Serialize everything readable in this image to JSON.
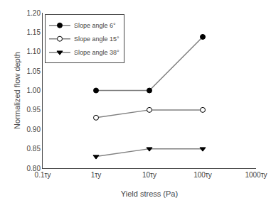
{
  "chart_data": {
    "type": "line",
    "x": [
      1,
      10,
      100
    ],
    "series": [
      {
        "name": "Slope angle 6°",
        "color": "#808080",
        "marker": "circle",
        "line_style": "solid",
        "values": [
          1.0,
          1.0,
          1.138
        ]
      },
      {
        "name": "Slope angle 15°",
        "color": "#808080",
        "marker": "circle-open",
        "line_style": "solid",
        "values": [
          0.93,
          0.95,
          0.95
        ]
      },
      {
        "name": "Slope angle 38°",
        "color": "#808080",
        "marker": "triangle-down",
        "line_style": "solid",
        "values": [
          0.83,
          0.85,
          0.85
        ]
      }
    ],
    "x_label": "Yield stress (Pa)",
    "y_label": "Normalized flow depth",
    "log": "x",
    "xlim": [
      0.1,
      1000
    ],
    "xticks": [
      {
        "value": 0.1,
        "label": "0.1τy"
      },
      {
        "value": 1,
        "label": "1τy"
      },
      {
        "value": 10,
        "label": "10τy"
      },
      {
        "value": 100,
        "label": "100τy"
      },
      {
        "value": 1000,
        "label": "1000τy"
      }
    ],
    "ylim": [
      0.8,
      1.2
    ],
    "yticks": [
      {
        "value": 0.8,
        "label": "0.80"
      },
      {
        "value": 0.85,
        "label": "0.85"
      },
      {
        "value": 0.9,
        "label": "0.90"
      },
      {
        "value": 0.95,
        "label": "0.95"
      },
      {
        "value": 1.0,
        "label": "1.00"
      },
      {
        "value": 1.05,
        "label": "1.05"
      },
      {
        "value": 1.1,
        "label": "1.10"
      },
      {
        "value": 1.15,
        "label": "1.15"
      },
      {
        "value": 1.2,
        "label": "1.20"
      }
    ],
    "grid": false,
    "legend": "upper left"
  }
}
